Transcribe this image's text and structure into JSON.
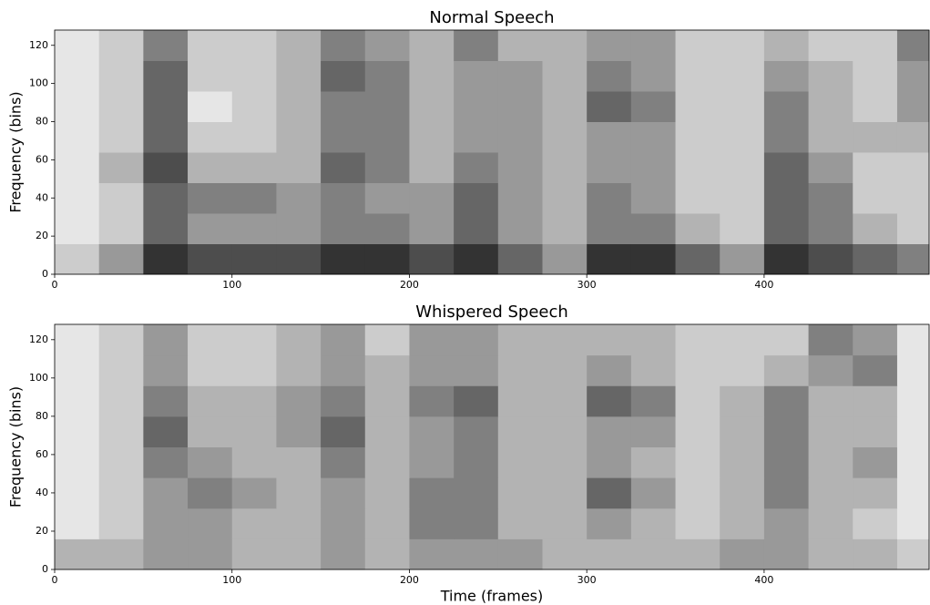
{
  "chart_data": [
    {
      "type": "heatmap",
      "title": "Normal Speech",
      "ylabel": "Frequency (bins)",
      "colormap": "Greys",
      "x_bins": [
        0,
        25,
        50,
        75,
        100,
        125,
        150,
        175,
        200,
        225,
        250,
        275,
        300,
        325,
        350,
        375,
        400,
        425,
        450,
        475,
        493
      ],
      "y_bins": [
        0,
        16,
        32,
        48,
        64,
        80,
        96,
        112,
        128
      ],
      "values": [
        [
          0.2,
          0.4,
          0.8,
          0.7,
          0.7,
          0.7,
          0.8,
          0.8,
          0.7,
          0.8,
          0.6,
          0.4,
          0.8,
          0.8,
          0.6,
          0.4,
          0.8,
          0.7,
          0.6,
          0.5
        ],
        [
          0.1,
          0.2,
          0.6,
          0.4,
          0.4,
          0.4,
          0.5,
          0.5,
          0.4,
          0.6,
          0.4,
          0.3,
          0.5,
          0.5,
          0.3,
          0.2,
          0.6,
          0.5,
          0.3,
          0.2
        ],
        [
          0.1,
          0.2,
          0.6,
          0.5,
          0.5,
          0.4,
          0.5,
          0.4,
          0.4,
          0.6,
          0.4,
          0.3,
          0.5,
          0.4,
          0.2,
          0.2,
          0.6,
          0.5,
          0.2,
          0.2
        ],
        [
          0.1,
          0.3,
          0.7,
          0.3,
          0.3,
          0.3,
          0.6,
          0.5,
          0.3,
          0.5,
          0.4,
          0.3,
          0.4,
          0.4,
          0.2,
          0.2,
          0.6,
          0.4,
          0.2,
          0.2
        ],
        [
          0.1,
          0.2,
          0.6,
          0.2,
          0.2,
          0.3,
          0.5,
          0.5,
          0.3,
          0.4,
          0.4,
          0.3,
          0.4,
          0.4,
          0.2,
          0.2,
          0.5,
          0.3,
          0.3,
          0.3
        ],
        [
          0.1,
          0.2,
          0.6,
          0.1,
          0.2,
          0.3,
          0.5,
          0.5,
          0.3,
          0.4,
          0.4,
          0.3,
          0.6,
          0.5,
          0.2,
          0.2,
          0.5,
          0.3,
          0.2,
          0.4
        ],
        [
          0.1,
          0.2,
          0.6,
          0.2,
          0.2,
          0.3,
          0.6,
          0.5,
          0.3,
          0.4,
          0.4,
          0.3,
          0.5,
          0.4,
          0.2,
          0.2,
          0.4,
          0.3,
          0.2,
          0.4
        ],
        [
          0.1,
          0.2,
          0.5,
          0.2,
          0.2,
          0.3,
          0.5,
          0.4,
          0.3,
          0.5,
          0.3,
          0.3,
          0.4,
          0.4,
          0.2,
          0.2,
          0.3,
          0.2,
          0.2,
          0.5
        ]
      ],
      "xlim": [
        0,
        493
      ],
      "ylim": [
        0,
        128
      ],
      "xticks": [
        0,
        100,
        200,
        300,
        400
      ],
      "yticks": [
        0,
        20,
        40,
        60,
        80,
        100,
        120
      ]
    },
    {
      "type": "heatmap",
      "title": "Whispered Speech",
      "xlabel": "Time (frames)",
      "ylabel": "Frequency (bins)",
      "colormap": "Greys",
      "x_bins": [
        0,
        25,
        50,
        75,
        100,
        125,
        150,
        175,
        200,
        225,
        250,
        275,
        300,
        325,
        350,
        375,
        400,
        425,
        450,
        475,
        493
      ],
      "y_bins": [
        0,
        16,
        32,
        48,
        64,
        80,
        96,
        112,
        128
      ],
      "values": [
        [
          0.3,
          0.3,
          0.4,
          0.4,
          0.3,
          0.3,
          0.4,
          0.3,
          0.4,
          0.4,
          0.4,
          0.3,
          0.3,
          0.3,
          0.3,
          0.4,
          0.4,
          0.3,
          0.3,
          0.2
        ],
        [
          0.1,
          0.2,
          0.4,
          0.4,
          0.3,
          0.3,
          0.4,
          0.3,
          0.5,
          0.5,
          0.3,
          0.3,
          0.4,
          0.3,
          0.2,
          0.3,
          0.4,
          0.3,
          0.2,
          0.1
        ],
        [
          0.1,
          0.2,
          0.4,
          0.5,
          0.4,
          0.3,
          0.4,
          0.3,
          0.5,
          0.5,
          0.3,
          0.3,
          0.6,
          0.4,
          0.2,
          0.3,
          0.5,
          0.3,
          0.3,
          0.1
        ],
        [
          0.1,
          0.2,
          0.5,
          0.4,
          0.3,
          0.3,
          0.5,
          0.3,
          0.4,
          0.5,
          0.3,
          0.3,
          0.4,
          0.3,
          0.2,
          0.3,
          0.5,
          0.3,
          0.4,
          0.1
        ],
        [
          0.1,
          0.2,
          0.6,
          0.3,
          0.3,
          0.4,
          0.6,
          0.3,
          0.4,
          0.5,
          0.3,
          0.3,
          0.4,
          0.4,
          0.2,
          0.3,
          0.5,
          0.3,
          0.3,
          0.1
        ],
        [
          0.1,
          0.2,
          0.5,
          0.3,
          0.3,
          0.4,
          0.5,
          0.3,
          0.5,
          0.6,
          0.3,
          0.3,
          0.6,
          0.5,
          0.2,
          0.3,
          0.5,
          0.3,
          0.3,
          0.1
        ],
        [
          0.1,
          0.2,
          0.4,
          0.2,
          0.2,
          0.3,
          0.4,
          0.3,
          0.4,
          0.4,
          0.3,
          0.3,
          0.4,
          0.3,
          0.2,
          0.2,
          0.3,
          0.4,
          0.5,
          0.1
        ],
        [
          0.1,
          0.2,
          0.4,
          0.2,
          0.2,
          0.3,
          0.4,
          0.2,
          0.4,
          0.4,
          0.3,
          0.3,
          0.3,
          0.3,
          0.2,
          0.2,
          0.2,
          0.5,
          0.4,
          0.1
        ]
      ],
      "xlim": [
        0,
        493
      ],
      "ylim": [
        0,
        128
      ],
      "xticks": [
        0,
        100,
        200,
        300,
        400
      ],
      "yticks": [
        0,
        20,
        40,
        60,
        80,
        100,
        120
      ]
    }
  ]
}
